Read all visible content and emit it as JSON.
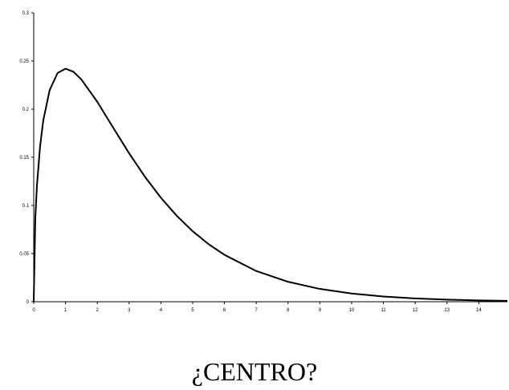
{
  "chart_data": {
    "type": "line",
    "title": "¿CENTRO?",
    "x": [
      0,
      0.05,
      0.1,
      0.2,
      0.3,
      0.5,
      0.75,
      1,
      1.25,
      1.5,
      2,
      2.5,
      3,
      3.5,
      4,
      4.5,
      5,
      5.5,
      6,
      7,
      8,
      9,
      10,
      11,
      12,
      13,
      14,
      14.9
    ],
    "series": [
      {
        "color": "#000000",
        "values": [
          0,
          0.087,
          0.12,
          0.1614,
          0.1881,
          0.2197,
          0.2375,
          0.242,
          0.2388,
          0.2308,
          0.2076,
          0.1807,
          0.1542,
          0.1297,
          0.108,
          0.0892,
          0.0732,
          0.0598,
          0.0487,
          0.0319,
          0.0207,
          0.0133,
          0.0085,
          0.0054,
          0.0034,
          0.0022,
          0.0014,
          0.0009
        ]
      }
    ],
    "xlim": [
      0,
      14.9
    ],
    "ylim": [
      0,
      0.3
    ],
    "xticks": [
      0,
      1,
      2,
      3,
      4,
      5,
      6,
      7,
      8,
      9,
      10,
      11,
      12,
      13,
      14
    ],
    "yticks": [
      0,
      0.05,
      0.1,
      0.15,
      0.2,
      0.25,
      0.3
    ],
    "grid": false
  }
}
